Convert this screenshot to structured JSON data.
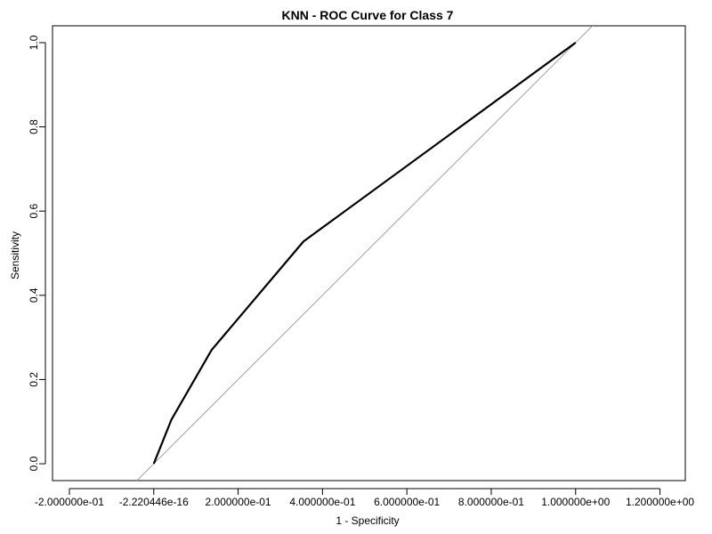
{
  "chart_data": {
    "type": "line",
    "title": "KNN - ROC Curve for Class 7",
    "xlabel": "1 - Specificity",
    "ylabel": "Sensitivity",
    "xlim": [
      -0.24,
      1.26
    ],
    "ylim": [
      -0.04,
      1.04
    ],
    "x_ticks": [
      -0.2,
      0.0,
      0.2,
      0.4,
      0.6,
      0.8,
      1.0,
      1.2
    ],
    "x_tick_labels": [
      "-2.000000e-01",
      "-2.220446e-16",
      "2.000000e-01",
      "4.000000e-01",
      "6.000000e-01",
      "8.000000e-01",
      "1.000000e+00",
      "1.200000e+00"
    ],
    "y_ticks": [
      0.0,
      0.2,
      0.4,
      0.6,
      0.8,
      1.0
    ],
    "y_tick_labels": [
      "0.0",
      "0.2",
      "0.4",
      "0.6",
      "0.8",
      "1.0"
    ],
    "grid": false,
    "legend": "none",
    "colors": {
      "roc": "#000000",
      "diagonal": "#a0a0a0"
    },
    "series": [
      {
        "x": [
          0.0,
          0.042,
          0.137,
          0.355,
          1.0
        ],
        "y": [
          0.0,
          0.105,
          0.27,
          0.528,
          1.0
        ],
        "style": "solid-thick"
      },
      {
        "x": [
          -0.04,
          1.04
        ],
        "y": [
          -0.04,
          1.04
        ],
        "style": "solid-thin"
      }
    ]
  }
}
